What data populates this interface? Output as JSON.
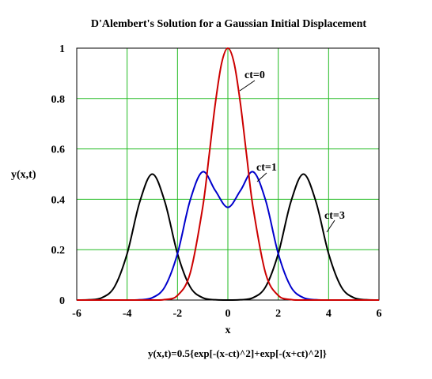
{
  "chart_data": {
    "type": "line",
    "title": "D'Alembert's Solution for a Gaussian Initial Displacement",
    "xlabel": "x",
    "ylabel": "y(x,t)",
    "xlim": [
      -6,
      6
    ],
    "ylim": [
      0,
      1
    ],
    "x_ticks": [
      -6,
      -4,
      -2,
      0,
      2,
      4,
      6
    ],
    "y_ticks": [
      0,
      0.2,
      0.4,
      0.6,
      0.8,
      1
    ],
    "x_tick_labels": [
      "-6",
      "-4",
      "-2",
      "0",
      "2",
      "4",
      "6"
    ],
    "y_tick_labels": [
      "0",
      "0.2",
      "0.4",
      "0.6",
      "0.8",
      "1"
    ],
    "grid": true,
    "formula": "y(x,t)=0.5{exp[-(x-ct)^2]+exp[-(x+ct)^2]}",
    "series": [
      {
        "ct": 0,
        "color": "#cc0000",
        "label": "ct=0",
        "x": [
          -6,
          -5,
          -4,
          -3,
          -2.5,
          -2,
          -1.5,
          -1,
          -0.75,
          -0.5,
          -0.25,
          0,
          0.25,
          0.5,
          0.75,
          1,
          1.5,
          2,
          2.5,
          3,
          4,
          5,
          6
        ],
        "y": [
          0,
          0,
          0,
          0.0001,
          0.0019,
          0.0183,
          0.1054,
          0.3679,
          0.5698,
          0.7788,
          0.9394,
          1,
          0.9394,
          0.7788,
          0.5698,
          0.3679,
          0.1054,
          0.0183,
          0.0019,
          0.0001,
          0,
          0,
          0
        ]
      },
      {
        "ct": 1,
        "color": "#0000cc",
        "label": "ct=1",
        "x": [
          -6,
          -4,
          -3.5,
          -3,
          -2.5,
          -2,
          -1.5,
          -1,
          -0.5,
          0,
          0.5,
          1,
          1.5,
          2,
          2.5,
          3,
          3.5,
          4,
          6
        ],
        "y": [
          0,
          0.0001,
          0.001,
          0.0092,
          0.0527,
          0.1841,
          0.3954,
          0.5092,
          0.4346,
          0.3679,
          0.4346,
          0.5092,
          0.3954,
          0.1841,
          0.0527,
          0.0092,
          0.001,
          0.0001,
          0
        ]
      },
      {
        "ct": 3,
        "color": "#000000",
        "label": "ct=3",
        "x": [
          -6,
          -5.5,
          -5,
          -4.5,
          -4,
          -3.5,
          -3,
          -2.5,
          -2,
          -1.5,
          -1,
          -0.5,
          0,
          0.5,
          1,
          1.5,
          2,
          2.5,
          3,
          3.5,
          4,
          4.5,
          5,
          5.5,
          6
        ],
        "y": [
          0.0001,
          0.001,
          0.0092,
          0.0527,
          0.1839,
          0.3894,
          0.5,
          0.3894,
          0.1839,
          0.0527,
          0.0092,
          0.001,
          0.0001,
          0.001,
          0.0092,
          0.0527,
          0.1839,
          0.3894,
          0.5,
          0.3894,
          0.1839,
          0.0527,
          0.0092,
          0.001,
          0.0001
        ]
      }
    ]
  }
}
